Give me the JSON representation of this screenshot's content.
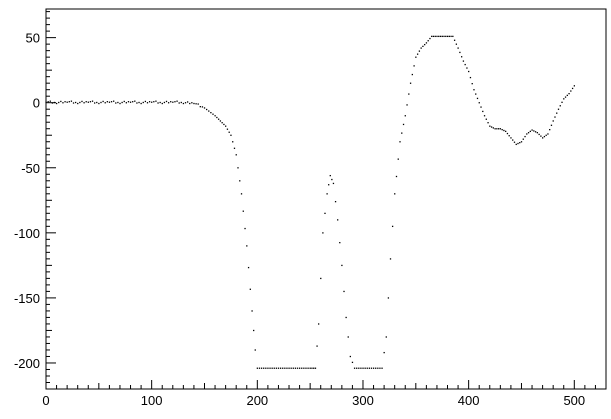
{
  "chart_data": {
    "type": "scatter",
    "title": "",
    "xlabel": "",
    "ylabel": "",
    "xlim": [
      0,
      530
    ],
    "ylim": [
      -220,
      72
    ],
    "xticks": [
      0,
      100,
      200,
      300,
      400,
      500
    ],
    "yticks": [
      50,
      0,
      -50,
      -100,
      -150,
      -200
    ],
    "xtick_labels": [
      "0",
      "100",
      "200",
      "300",
      "400",
      "500"
    ],
    "ytick_labels": [
      "50",
      "0",
      "-50",
      "-100",
      "-150",
      "-200"
    ],
    "grid": false,
    "legend": "none",
    "marker_color": "#000000",
    "series": [
      {
        "points": [
          [
            0,
            1
          ],
          [
            10,
            0
          ],
          [
            20,
            1
          ],
          [
            30,
            0
          ],
          [
            40,
            1
          ],
          [
            50,
            0
          ],
          [
            60,
            1
          ],
          [
            70,
            0
          ],
          [
            80,
            1
          ],
          [
            90,
            0
          ],
          [
            100,
            1
          ],
          [
            110,
            0
          ],
          [
            120,
            1
          ],
          [
            130,
            0
          ],
          [
            140,
            0
          ],
          [
            150,
            -4
          ],
          [
            160,
            -10
          ],
          [
            165,
            -14
          ],
          [
            170,
            -18
          ],
          [
            175,
            -25
          ],
          [
            180,
            -40
          ],
          [
            185,
            -70
          ],
          [
            190,
            -110
          ],
          [
            195,
            -160
          ],
          [
            198,
            -190
          ],
          [
            200,
            -204
          ],
          [
            210,
            -204
          ],
          [
            220,
            -204
          ],
          [
            230,
            -204
          ],
          [
            240,
            -204
          ],
          [
            250,
            -204
          ],
          [
            255,
            -204
          ],
          [
            258,
            -170
          ],
          [
            262,
            -100
          ],
          [
            266,
            -70
          ],
          [
            269,
            -56
          ],
          [
            272,
            -62
          ],
          [
            276,
            -90
          ],
          [
            280,
            -125
          ],
          [
            284,
            -165
          ],
          [
            288,
            -195
          ],
          [
            292,
            -204
          ],
          [
            300,
            -204
          ],
          [
            310,
            -204
          ],
          [
            318,
            -204
          ],
          [
            322,
            -180
          ],
          [
            326,
            -120
          ],
          [
            330,
            -70
          ],
          [
            335,
            -30
          ],
          [
            340,
            -10
          ],
          [
            345,
            15
          ],
          [
            350,
            35
          ],
          [
            355,
            42
          ],
          [
            360,
            46
          ],
          [
            365,
            51
          ],
          [
            370,
            51
          ],
          [
            375,
            51
          ],
          [
            380,
            51
          ],
          [
            385,
            51
          ],
          [
            390,
            42
          ],
          [
            395,
            32
          ],
          [
            400,
            24
          ],
          [
            405,
            10
          ],
          [
            410,
            0
          ],
          [
            415,
            -10
          ],
          [
            420,
            -18
          ],
          [
            425,
            -20
          ],
          [
            430,
            -20
          ],
          [
            435,
            -22
          ],
          [
            440,
            -27
          ],
          [
            445,
            -32
          ],
          [
            450,
            -30
          ],
          [
            455,
            -24
          ],
          [
            460,
            -21
          ],
          [
            465,
            -23
          ],
          [
            470,
            -27
          ],
          [
            475,
            -24
          ],
          [
            480,
            -14
          ],
          [
            485,
            -5
          ],
          [
            490,
            3
          ],
          [
            495,
            7
          ],
          [
            500,
            13
          ]
        ]
      }
    ]
  }
}
